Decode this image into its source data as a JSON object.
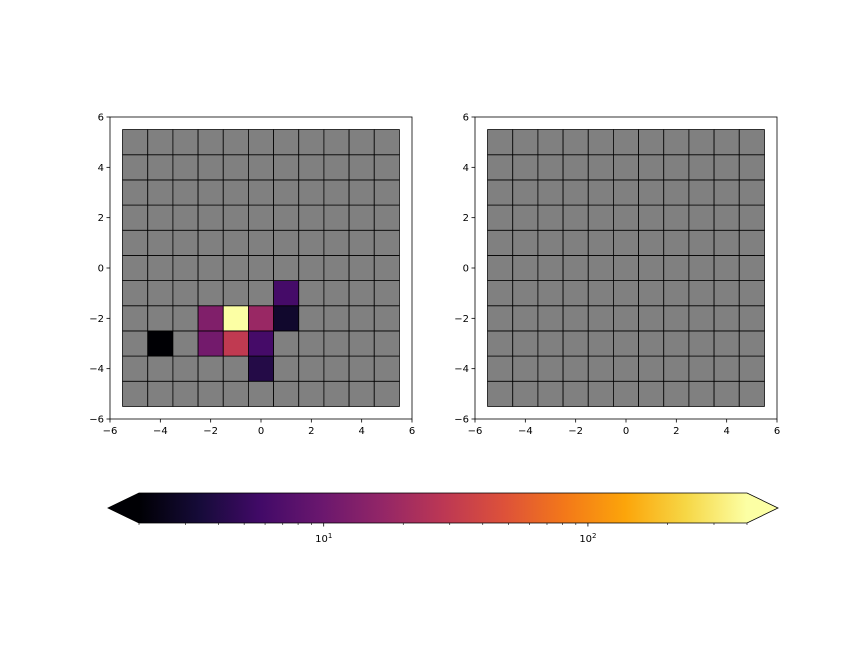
{
  "chart_data": [
    {
      "type": "heatmap",
      "title": "",
      "xlabel": "",
      "ylabel": "",
      "xlim": [
        -6,
        6
      ],
      "ylim": [
        -6,
        6
      ],
      "x_ticks": [
        "−6",
        "−4",
        "−2",
        "0",
        "2",
        "4",
        "6"
      ],
      "y_ticks": [
        "−6",
        "−4",
        "−2",
        "0",
        "2",
        "4",
        "6"
      ],
      "grid": false,
      "cell_edges": [
        -5.5,
        -4.5,
        -3.5,
        -2.5,
        -1.5,
        -0.5,
        0.5,
        1.5,
        2.5,
        3.5,
        4.5,
        5.5
      ],
      "background_color": "#808080",
      "cell_edge_color": "#000000",
      "cells": [
        {
          "x": -4,
          "y": -3,
          "value": 2
        },
        {
          "x": -2,
          "y": -2,
          "value": 13
        },
        {
          "x": -2,
          "y": -3,
          "value": 11
        },
        {
          "x": -1,
          "y": -2,
          "value": 400
        },
        {
          "x": -1,
          "y": -3,
          "value": 30
        },
        {
          "x": 0,
          "y": -2,
          "value": 18
        },
        {
          "x": 0,
          "y": -3,
          "value": 6
        },
        {
          "x": 0,
          "y": -4,
          "value": 4
        },
        {
          "x": 1,
          "y": -1,
          "value": 6
        },
        {
          "x": 1,
          "y": -2,
          "value": 3
        }
      ]
    },
    {
      "type": "heatmap",
      "title": "",
      "xlabel": "",
      "ylabel": "",
      "xlim": [
        -6,
        6
      ],
      "ylim": [
        -6,
        6
      ],
      "x_ticks": [
        "−6",
        "−4",
        "−2",
        "0",
        "2",
        "4",
        "6"
      ],
      "y_ticks": [
        "−6",
        "−4",
        "−2",
        "0",
        "2",
        "4",
        "6"
      ],
      "grid": false,
      "cell_edges": [
        -5.5,
        -4.5,
        -3.5,
        -2.5,
        -1.5,
        -0.5,
        0.5,
        1.5,
        2.5,
        3.5,
        4.5,
        5.5
      ],
      "background_color": "#808080",
      "cell_edge_color": "#000000",
      "cells": []
    }
  ],
  "colorbar": {
    "colormap": "inferno",
    "scale": "log",
    "range": [
      2,
      400
    ],
    "extend": "both",
    "orientation": "horizontal",
    "major_ticks": [
      {
        "value": 10,
        "base": "10",
        "exp": "1"
      },
      {
        "value": 100,
        "base": "10",
        "exp": "2"
      }
    ],
    "minor_ticks": [
      2,
      3,
      4,
      5,
      6,
      7,
      8,
      9,
      20,
      30,
      40,
      50,
      60,
      70,
      80,
      90,
      200,
      300,
      400
    ]
  }
}
